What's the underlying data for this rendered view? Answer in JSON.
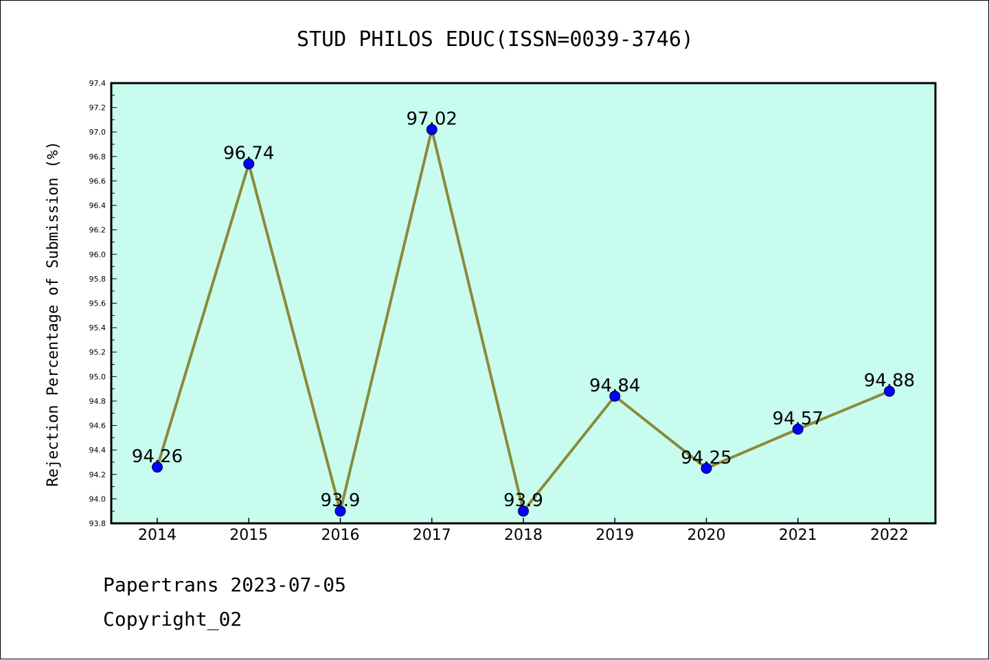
{
  "footer": {
    "line1": "Papertrans 2023-07-05",
    "line2": "Copyright_02"
  },
  "chart_data": {
    "type": "line",
    "title": "STUD PHILOS EDUC(ISSN=0039-3746)",
    "xlabel": "",
    "ylabel": "Rejection Percentage of Submission (%)",
    "categories": [
      "2014",
      "2015",
      "2016",
      "2017",
      "2018",
      "2019",
      "2020",
      "2021",
      "2022"
    ],
    "values": [
      94.26,
      96.74,
      93.9,
      97.02,
      93.9,
      94.84,
      94.25,
      94.57,
      94.88
    ],
    "data_labels": [
      "94.26",
      "96.74",
      "93.9",
      "97.02",
      "93.9",
      "94.84",
      "94.25",
      "94.57",
      "94.88"
    ],
    "ylim": [
      93.8,
      97.4
    ],
    "yticks": [
      "93.8",
      "94.0",
      "94.2",
      "94.4",
      "94.6",
      "94.8",
      "95.0",
      "95.2",
      "95.4",
      "95.6",
      "95.8",
      "96.0",
      "96.2",
      "96.4",
      "96.6",
      "96.8",
      "97.0",
      "97.2",
      "97.4"
    ],
    "grid": false,
    "colors": {
      "plot_background": "#c8fcee",
      "line": "#8b8a3a",
      "marker": "#0000ff"
    }
  }
}
